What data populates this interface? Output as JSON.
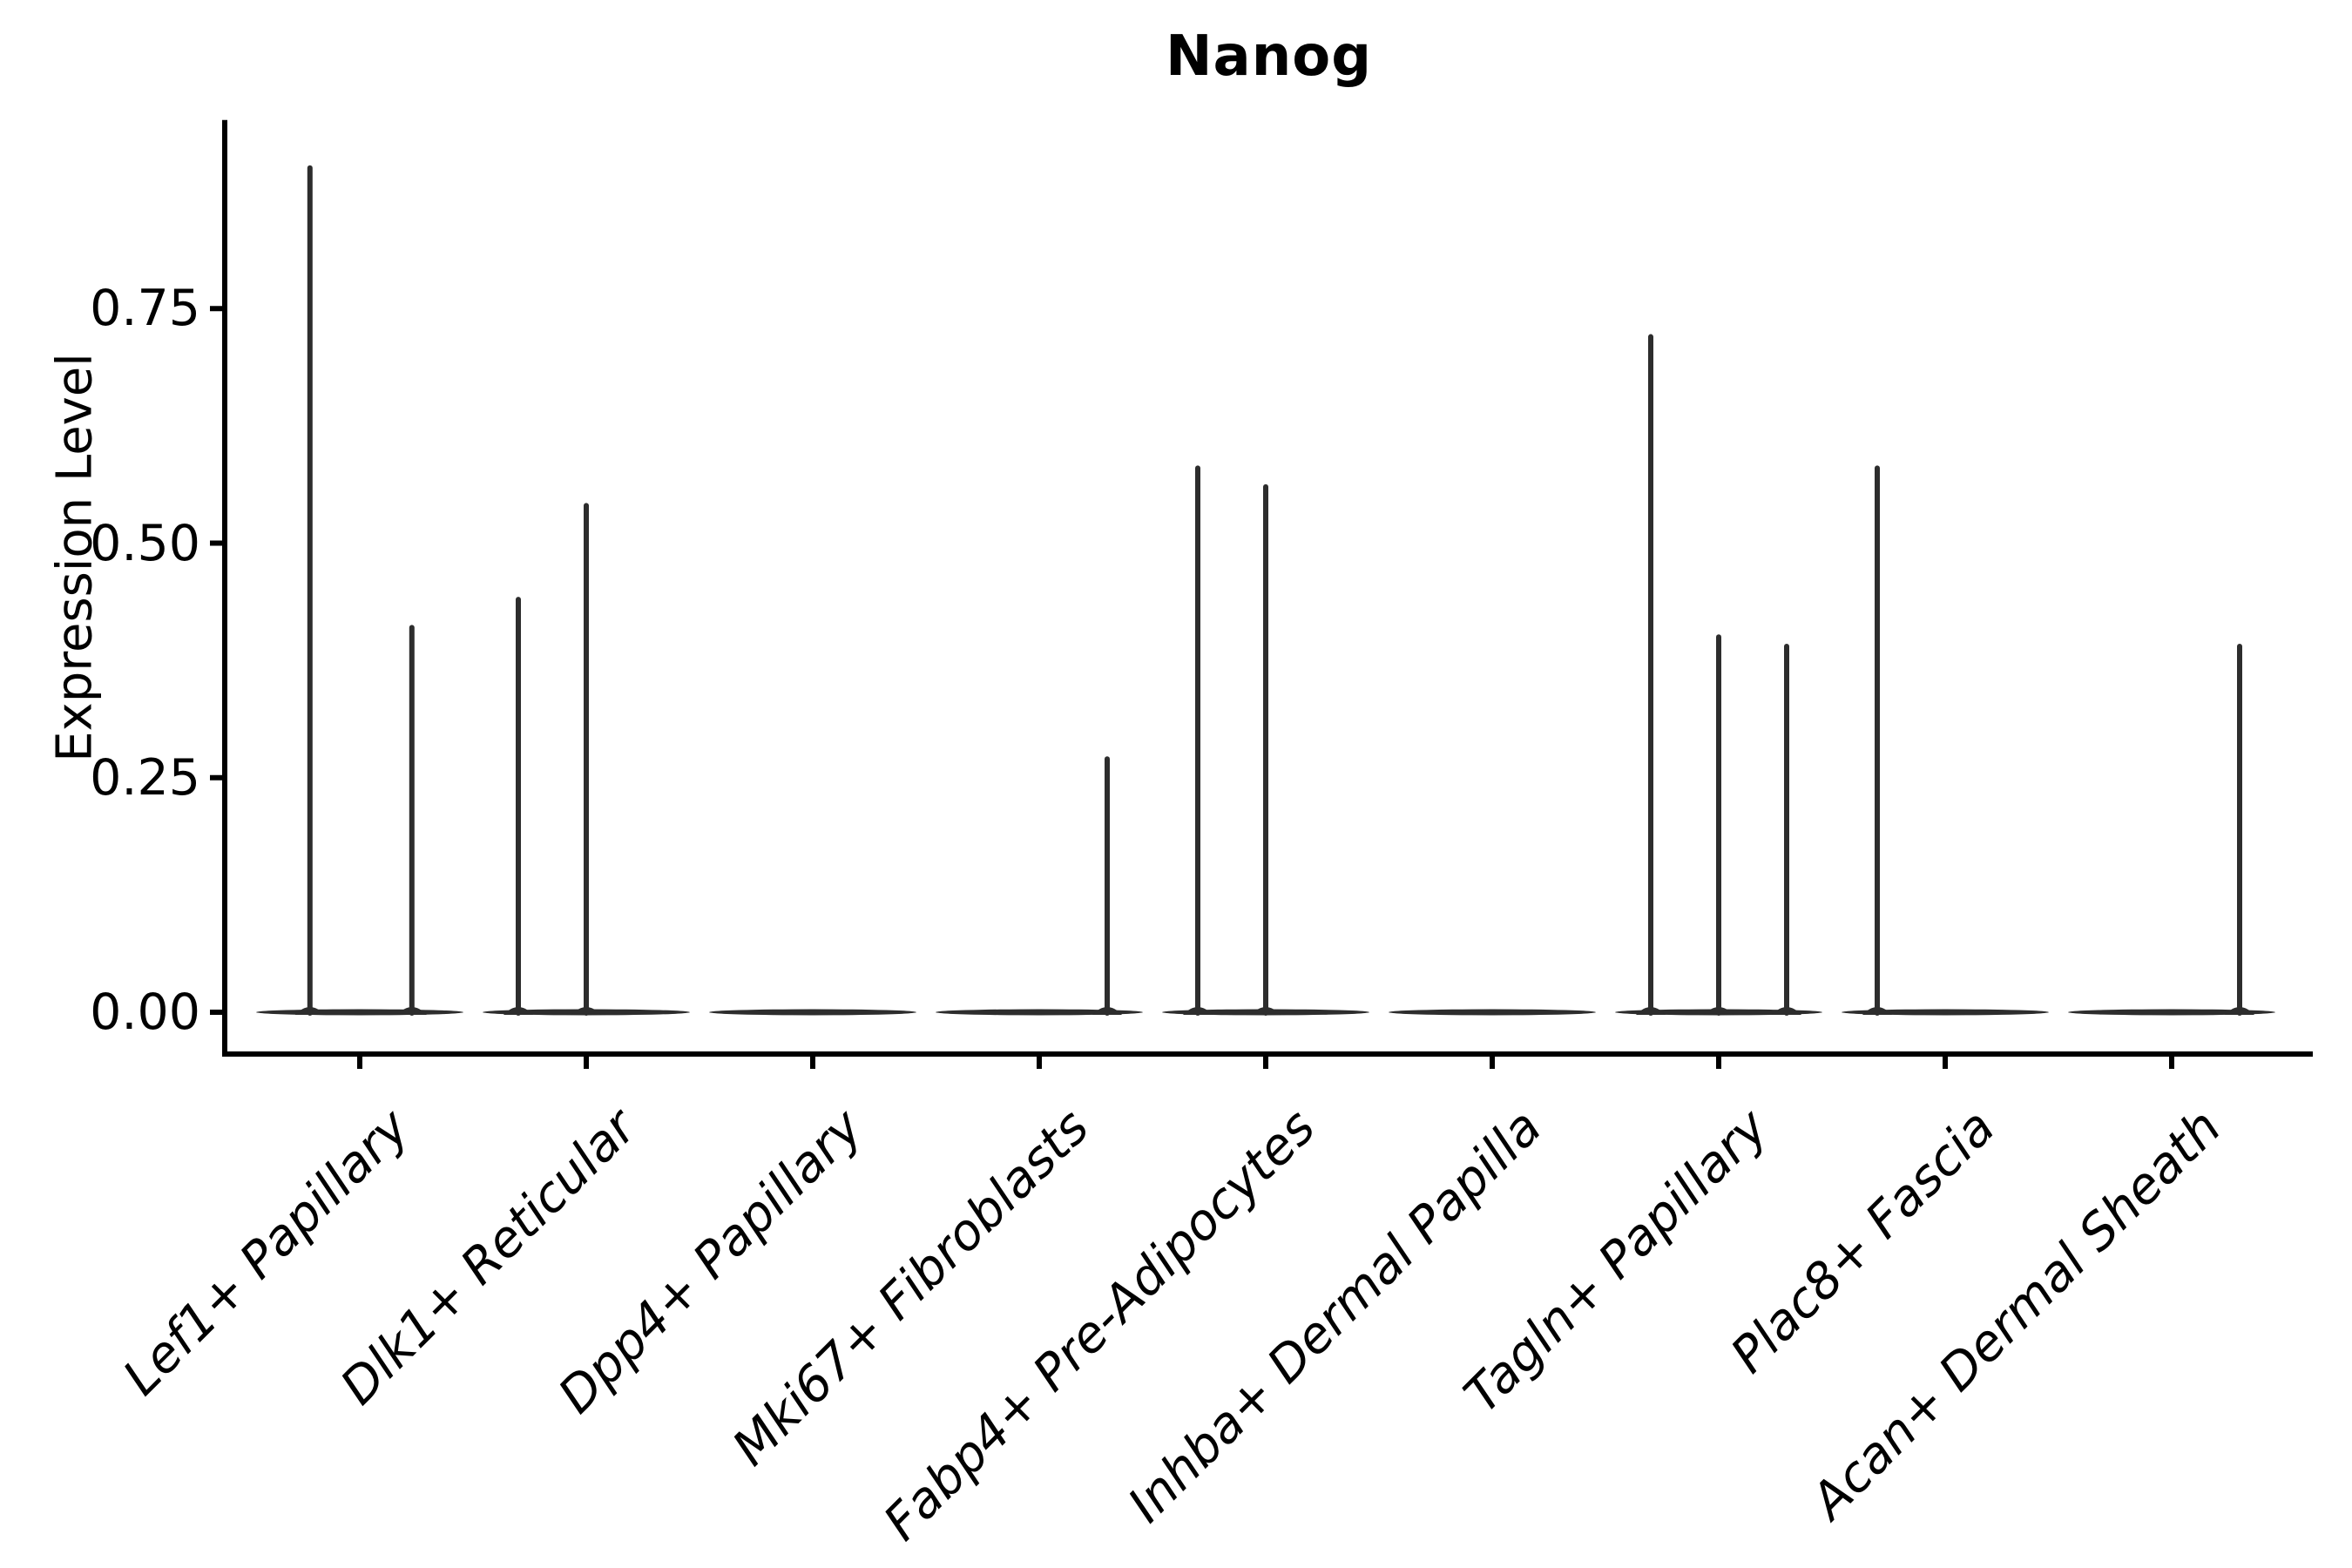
{
  "chart_data": {
    "type": "violin",
    "title": "Nanog",
    "ylabel": "Expression Level",
    "xlabel": "",
    "ylim": [
      -0.045,
      0.95
    ],
    "grid": false,
    "legend": null,
    "yticks": [
      {
        "label": "0.00",
        "value": 0.0
      },
      {
        "label": "0.25",
        "value": 0.25
      },
      {
        "label": "0.50",
        "value": 0.5
      },
      {
        "label": "0.75",
        "value": 0.75
      }
    ],
    "categories": [
      "Lef1+ Papillary",
      "Dlk1+ Reticular",
      "Dpp4+ Papillary",
      "Mki67+ Fibroblasts",
      "Fabp4+ Pre-Adipocytes",
      "Inhba+ Dermal Papilla",
      "Tagln+ Papillary",
      "Plac8+ Fascia",
      "Acan+ Dermal Sheath"
    ],
    "series": [
      {
        "name": "Lef1+ Papillary",
        "baseline_value": 0.0,
        "spikes": [
          {
            "offset": -0.22,
            "value": 0.9
          },
          {
            "offset": 0.23,
            "value": 0.41
          }
        ]
      },
      {
        "name": "Dlk1+ Reticular",
        "baseline_value": 0.0,
        "spikes": [
          {
            "offset": -0.3,
            "value": 0.44
          },
          {
            "offset": 0.0,
            "value": 0.54
          }
        ]
      },
      {
        "name": "Dpp4+ Papillary",
        "baseline_value": 0.0,
        "spikes": []
      },
      {
        "name": "Mki67+ Fibroblasts",
        "baseline_value": 0.0,
        "spikes": [
          {
            "offset": 0.3,
            "value": 0.27
          }
        ]
      },
      {
        "name": "Fabp4+ Pre-Adipocytes",
        "baseline_value": 0.0,
        "spikes": [
          {
            "offset": -0.3,
            "value": 0.58
          },
          {
            "offset": 0.0,
            "value": 0.56
          }
        ]
      },
      {
        "name": "Inhba+ Dermal Papilla",
        "baseline_value": 0.0,
        "spikes": []
      },
      {
        "name": "Tagln+ Papillary",
        "baseline_value": 0.0,
        "spikes": [
          {
            "offset": -0.3,
            "value": 0.72
          },
          {
            "offset": 0.0,
            "value": 0.4
          },
          {
            "offset": 0.3,
            "value": 0.39
          }
        ]
      },
      {
        "name": "Plac8+ Fascia",
        "baseline_value": 0.0,
        "spikes": [
          {
            "offset": -0.3,
            "value": 0.58
          }
        ]
      },
      {
        "name": "Acan+ Dermal Sheath",
        "baseline_value": 0.0,
        "spikes": [
          {
            "offset": 0.3,
            "value": 0.39
          }
        ]
      }
    ],
    "colors": {
      "violin": "#2d2d2d",
      "axis": "#000000",
      "text": "#000000",
      "background": "#ffffff"
    }
  }
}
